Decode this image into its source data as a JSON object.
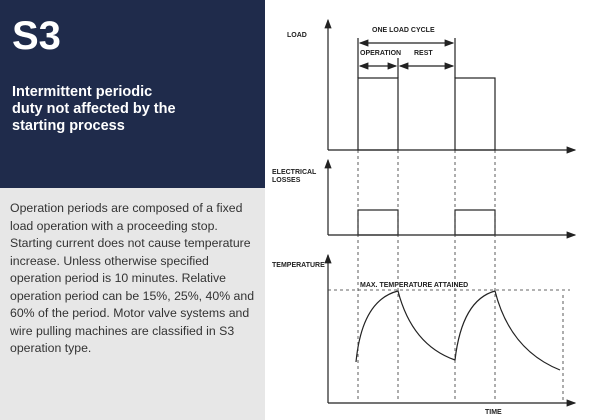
{
  "panel": {
    "title": "S3",
    "subtitle": "Intermittent periodic duty not affected by the starting process",
    "body": "Operation periods are composed of a fixed load operation with a proceeding stop. Starting current does not cause temperature increase. Unless otherwise specified operation period is 10 minutes. Relative operation period can be 15%, 25%, 40% and 60% of the period. Motor valve systems and wire pulling machines are classified in S3 operation type."
  },
  "diagram": {
    "load_label": "LOAD",
    "cycle_label": "ONE LOAD CYCLE",
    "operation_label": "OPERATION",
    "rest_label": "REST",
    "losses_label_line1": "ELECTRICAL",
    "losses_label_line2": "LOSSES",
    "temperature_label": "TEMPERATURE",
    "max_label": "MAX. TEMPERATURE ATTAINED",
    "time_label": "TIME"
  }
}
